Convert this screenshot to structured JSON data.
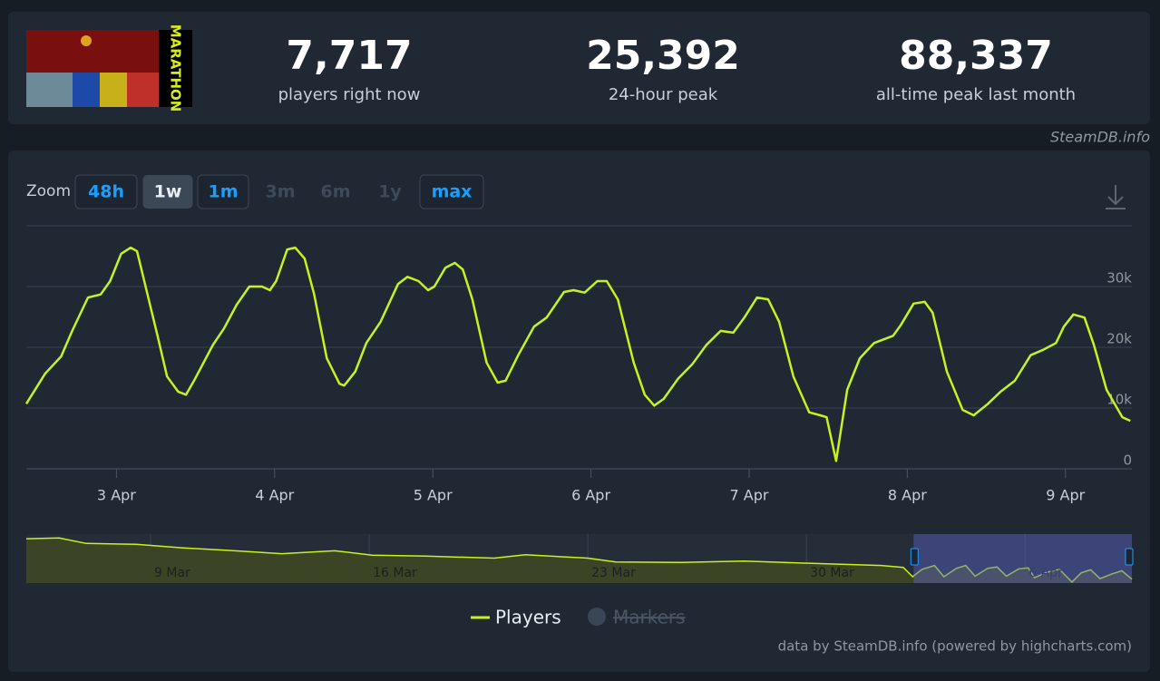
{
  "header": {
    "logo_text": "MARATHON",
    "stats": [
      {
        "value": "7,717",
        "label": "players right now"
      },
      {
        "value": "25,392",
        "label": "24-hour peak"
      },
      {
        "value": "88,337",
        "label": "all-time peak last month"
      }
    ],
    "source": "SteamDB.info"
  },
  "zoom": {
    "label": "Zoom",
    "buttons": [
      {
        "text": "48h",
        "state": "enabled"
      },
      {
        "text": "1w",
        "state": "selected"
      },
      {
        "text": "1m",
        "state": "enabled"
      },
      {
        "text": "3m",
        "state": "disabled"
      },
      {
        "text": "6m",
        "state": "disabled"
      },
      {
        "text": "1y",
        "state": "disabled"
      },
      {
        "text": "max",
        "state": "enabled"
      }
    ]
  },
  "chart_data": [
    {
      "type": "line",
      "x": [
        2.43,
        2.55,
        2.65,
        2.72,
        2.82,
        2.9,
        2.96,
        3.03,
        3.09,
        3.13,
        3.19,
        3.26,
        3.32,
        3.39,
        3.44,
        3.49,
        3.61,
        3.68,
        3.76,
        3.84,
        3.92,
        3.97,
        4.01,
        4.08,
        4.13,
        4.19,
        4.25,
        4.33,
        4.41,
        4.44,
        4.51,
        4.58,
        4.67,
        4.78,
        4.84,
        4.91,
        4.97,
        5.01,
        5.08,
        5.14,
        5.19,
        5.25,
        5.34,
        5.41,
        5.46,
        5.54,
        5.64,
        5.72,
        5.83,
        5.89,
        5.96,
        6.04,
        6.1,
        6.17,
        6.27,
        6.34,
        6.4,
        6.46,
        6.55,
        6.64,
        6.73,
        6.82,
        6.9,
        6.97,
        7.05,
        7.12,
        7.19,
        7.28,
        7.38,
        7.45,
        7.49,
        7.55,
        7.62,
        7.7,
        7.79,
        7.91,
        7.96,
        8.04,
        8.11,
        8.16,
        8.25,
        8.35,
        8.42,
        8.51,
        8.59,
        8.68,
        8.78,
        8.86,
        8.94,
        8.99,
        9.05,
        9.12,
        9.18,
        9.26,
        9.36,
        9.41
      ],
      "series": [
        {
          "name": "Players",
          "color": "#c6f31d",
          "values": [
            10700,
            15700,
            18500,
            22700,
            28200,
            28700,
            30900,
            35400,
            36400,
            35800,
            29400,
            21900,
            15200,
            12700,
            12200,
            14500,
            20400,
            23100,
            27000,
            30000,
            30000,
            29400,
            30900,
            36100,
            36400,
            34600,
            28700,
            18200,
            14000,
            13700,
            16000,
            20700,
            24200,
            30400,
            31600,
            30900,
            29400,
            30000,
            33100,
            33900,
            32800,
            27900,
            17500,
            14200,
            14500,
            18700,
            23400,
            24900,
            29100,
            29400,
            29000,
            30900,
            30900,
            27900,
            17500,
            12200,
            10400,
            11500,
            14800,
            17200,
            20400,
            22700,
            22400,
            24900,
            28200,
            27900,
            24200,
            15200,
            9300,
            8800,
            8500,
            1300,
            13000,
            18200,
            20700,
            21900,
            23700,
            27200,
            27500,
            25700,
            16000,
            9700,
            8800,
            10700,
            12700,
            14500,
            18700,
            19600,
            20700,
            23400,
            25400,
            24900,
            20400,
            13000,
            8500,
            7900
          ]
        }
      ],
      "hidden_series": [
        {
          "name": "Markers",
          "color": "#3a4556"
        }
      ],
      "xlim": [
        2.43,
        9.42
      ],
      "xticks": [
        {
          "value": 3,
          "label": "3 Apr"
        },
        {
          "value": 4,
          "label": "4 Apr"
        },
        {
          "value": 5,
          "label": "5 Apr"
        },
        {
          "value": 6,
          "label": "6 Apr"
        },
        {
          "value": 7,
          "label": "7 Apr"
        },
        {
          "value": 8,
          "label": "8 Apr"
        },
        {
          "value": 9,
          "label": "9 Apr"
        }
      ],
      "ylim": [
        0,
        40000
      ],
      "yticks": [
        0,
        {
          "value": 10000,
          "label": "10k"
        },
        {
          "value": 20000,
          "label": "20k"
        },
        {
          "value": 30000,
          "label": "30k"
        }
      ],
      "grid": true
    },
    {
      "type": "area",
      "x": [
        5.02,
        6.07,
        6.94,
        8.54,
        10.0,
        11.7,
        13.2,
        14.9,
        16.1,
        17.8,
        20.0,
        21.0,
        23.0,
        23.9,
        26.0,
        28.0,
        30.3,
        32.4,
        33.1,
        33.4,
        33.7,
        34.1,
        34.4,
        34.8,
        35.1,
        35.4,
        35.8,
        36.1,
        36.4,
        36.8,
        37.1,
        37.3,
        37.7,
        38.1,
        38.5,
        38.8,
        39.1,
        39.4,
        39.8,
        40.1,
        40.42
      ],
      "series": [
        {
          "color": "#c6f31d",
          "values": [
            90500,
            92000,
            81000,
            79000,
            72000,
            66000,
            60000,
            66000,
            57000,
            55000,
            51000,
            58000,
            51000,
            43000,
            42000,
            45000,
            40000,
            36000,
            32000,
            13000,
            28000,
            36000,
            13000,
            30000,
            36000,
            14000,
            30000,
            33000,
            14000,
            29000,
            31000,
            11000,
            22000,
            28000,
            2000,
            21000,
            27000,
            9000,
            19000,
            25000,
            8000
          ]
        }
      ],
      "xlim": [
        5.02,
        40.42
      ],
      "xticks": [
        {
          "value": 9,
          "label": "9 Mar"
        },
        {
          "value": 16,
          "label": "16 Mar"
        },
        {
          "value": 23,
          "label": "23 Mar"
        },
        {
          "value": 30,
          "label": "30 Mar"
        },
        {
          "value": 37,
          "label": "6 Apr"
        }
      ],
      "ylim": [
        0,
        100000
      ],
      "selection": [
        33.43,
        40.42
      ]
    }
  ],
  "credit": "data by SteamDB.info (powered by highcharts.com)"
}
